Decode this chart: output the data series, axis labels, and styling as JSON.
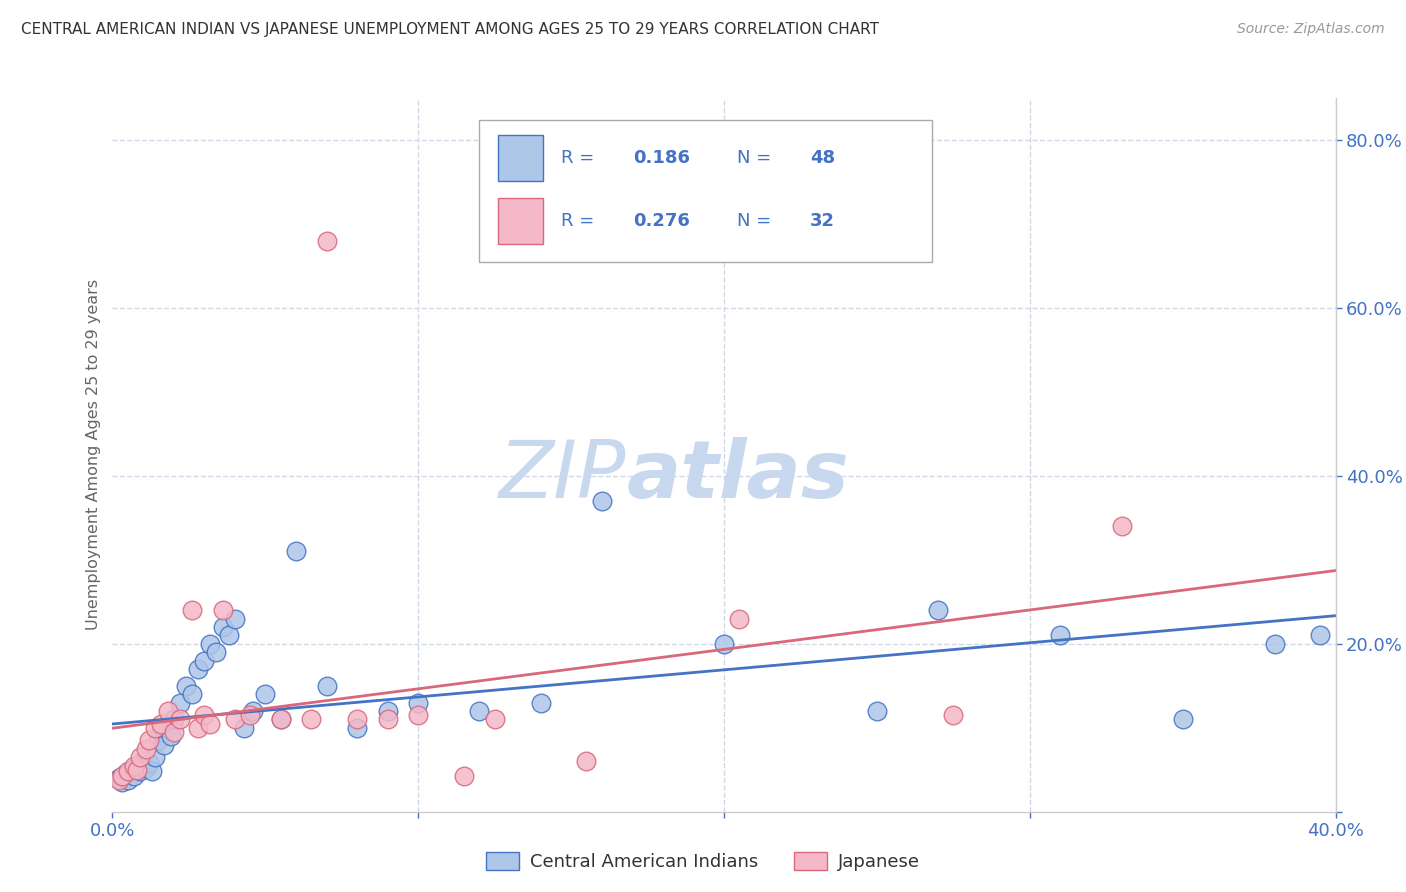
{
  "title": "CENTRAL AMERICAN INDIAN VS JAPANESE UNEMPLOYMENT AMONG AGES 25 TO 29 YEARS CORRELATION CHART",
  "source": "Source: ZipAtlas.com",
  "ylabel": "Unemployment Among Ages 25 to 29 years",
  "xlim": [
    0.0,
    0.4
  ],
  "ylim": [
    0.0,
    0.85
  ],
  "R1": 0.186,
  "N1": 48,
  "R2": 0.276,
  "N2": 32,
  "color_blue": "#aec6e8",
  "color_pink": "#f4b8c8",
  "color_blue_line": "#4472c4",
  "color_pink_line": "#d9687a",
  "color_axis_text": "#4472c4",
  "watermark_zip_color": "#c8d8ee",
  "watermark_atlas_color": "#c8d8ee",
  "background_color": "#ffffff",
  "grid_color": "#d0d8e8",
  "blue_scatter_x": [
    0.002,
    0.003,
    0.004,
    0.005,
    0.006,
    0.007,
    0.008,
    0.009,
    0.01,
    0.011,
    0.012,
    0.013,
    0.014,
    0.015,
    0.016,
    0.017,
    0.018,
    0.019,
    0.02,
    0.022,
    0.024,
    0.026,
    0.028,
    0.03,
    0.032,
    0.034,
    0.036,
    0.038,
    0.04,
    0.043,
    0.046,
    0.05,
    0.055,
    0.06,
    0.07,
    0.08,
    0.09,
    0.1,
    0.12,
    0.14,
    0.16,
    0.2,
    0.25,
    0.27,
    0.31,
    0.35,
    0.38,
    0.395
  ],
  "blue_scatter_y": [
    0.04,
    0.035,
    0.045,
    0.038,
    0.05,
    0.042,
    0.055,
    0.048,
    0.06,
    0.052,
    0.058,
    0.048,
    0.065,
    0.085,
    0.095,
    0.08,
    0.1,
    0.09,
    0.11,
    0.13,
    0.15,
    0.14,
    0.17,
    0.18,
    0.2,
    0.19,
    0.22,
    0.21,
    0.23,
    0.1,
    0.12,
    0.14,
    0.11,
    0.31,
    0.15,
    0.1,
    0.12,
    0.13,
    0.12,
    0.13,
    0.37,
    0.2,
    0.12,
    0.24,
    0.21,
    0.11,
    0.2,
    0.21
  ],
  "pink_scatter_x": [
    0.002,
    0.003,
    0.005,
    0.007,
    0.008,
    0.009,
    0.011,
    0.012,
    0.014,
    0.016,
    0.018,
    0.02,
    0.022,
    0.026,
    0.028,
    0.03,
    0.032,
    0.036,
    0.04,
    0.045,
    0.055,
    0.065,
    0.07,
    0.08,
    0.09,
    0.1,
    0.115,
    0.125,
    0.155,
    0.205,
    0.275,
    0.33
  ],
  "pink_scatter_y": [
    0.038,
    0.042,
    0.048,
    0.055,
    0.05,
    0.065,
    0.075,
    0.085,
    0.1,
    0.105,
    0.12,
    0.095,
    0.11,
    0.24,
    0.1,
    0.115,
    0.105,
    0.24,
    0.11,
    0.115,
    0.11,
    0.11,
    0.68,
    0.11,
    0.11,
    0.115,
    0.042,
    0.11,
    0.06,
    0.23,
    0.115,
    0.34
  ]
}
